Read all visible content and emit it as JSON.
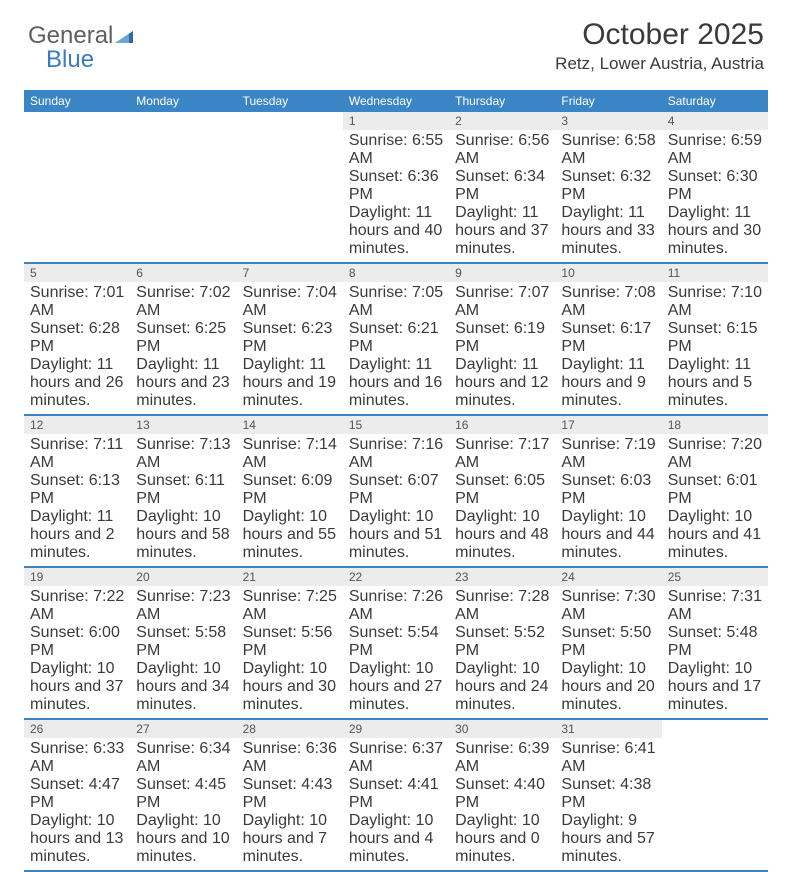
{
  "brand": {
    "name_gray": "General",
    "name_blue": "Blue",
    "color_blue": "#3a85c6",
    "color_gray": "#606060"
  },
  "header": {
    "month_title": "October 2025",
    "location": "Retz, Lower Austria, Austria"
  },
  "colors": {
    "header_bg": "#3a85c6",
    "header_text": "#ffffff",
    "daynum_bg": "#ececec",
    "rule": "#3a85c6",
    "text": "#3a3a3a",
    "page_bg": "#ffffff"
  },
  "day_names": [
    "Sunday",
    "Monday",
    "Tuesday",
    "Wednesday",
    "Thursday",
    "Friday",
    "Saturday"
  ],
  "weeks": [
    [
      {
        "n": "",
        "sr": "",
        "ss": "",
        "dl": ""
      },
      {
        "n": "",
        "sr": "",
        "ss": "",
        "dl": ""
      },
      {
        "n": "",
        "sr": "",
        "ss": "",
        "dl": ""
      },
      {
        "n": "1",
        "sr": "Sunrise: 6:55 AM",
        "ss": "Sunset: 6:36 PM",
        "dl": "Daylight: 11 hours and 40 minutes."
      },
      {
        "n": "2",
        "sr": "Sunrise: 6:56 AM",
        "ss": "Sunset: 6:34 PM",
        "dl": "Daylight: 11 hours and 37 minutes."
      },
      {
        "n": "3",
        "sr": "Sunrise: 6:58 AM",
        "ss": "Sunset: 6:32 PM",
        "dl": "Daylight: 11 hours and 33 minutes."
      },
      {
        "n": "4",
        "sr": "Sunrise: 6:59 AM",
        "ss": "Sunset: 6:30 PM",
        "dl": "Daylight: 11 hours and 30 minutes."
      }
    ],
    [
      {
        "n": "5",
        "sr": "Sunrise: 7:01 AM",
        "ss": "Sunset: 6:28 PM",
        "dl": "Daylight: 11 hours and 26 minutes."
      },
      {
        "n": "6",
        "sr": "Sunrise: 7:02 AM",
        "ss": "Sunset: 6:25 PM",
        "dl": "Daylight: 11 hours and 23 minutes."
      },
      {
        "n": "7",
        "sr": "Sunrise: 7:04 AM",
        "ss": "Sunset: 6:23 PM",
        "dl": "Daylight: 11 hours and 19 minutes."
      },
      {
        "n": "8",
        "sr": "Sunrise: 7:05 AM",
        "ss": "Sunset: 6:21 PM",
        "dl": "Daylight: 11 hours and 16 minutes."
      },
      {
        "n": "9",
        "sr": "Sunrise: 7:07 AM",
        "ss": "Sunset: 6:19 PM",
        "dl": "Daylight: 11 hours and 12 minutes."
      },
      {
        "n": "10",
        "sr": "Sunrise: 7:08 AM",
        "ss": "Sunset: 6:17 PM",
        "dl": "Daylight: 11 hours and 9 minutes."
      },
      {
        "n": "11",
        "sr": "Sunrise: 7:10 AM",
        "ss": "Sunset: 6:15 PM",
        "dl": "Daylight: 11 hours and 5 minutes."
      }
    ],
    [
      {
        "n": "12",
        "sr": "Sunrise: 7:11 AM",
        "ss": "Sunset: 6:13 PM",
        "dl": "Daylight: 11 hours and 2 minutes."
      },
      {
        "n": "13",
        "sr": "Sunrise: 7:13 AM",
        "ss": "Sunset: 6:11 PM",
        "dl": "Daylight: 10 hours and 58 minutes."
      },
      {
        "n": "14",
        "sr": "Sunrise: 7:14 AM",
        "ss": "Sunset: 6:09 PM",
        "dl": "Daylight: 10 hours and 55 minutes."
      },
      {
        "n": "15",
        "sr": "Sunrise: 7:16 AM",
        "ss": "Sunset: 6:07 PM",
        "dl": "Daylight: 10 hours and 51 minutes."
      },
      {
        "n": "16",
        "sr": "Sunrise: 7:17 AM",
        "ss": "Sunset: 6:05 PM",
        "dl": "Daylight: 10 hours and 48 minutes."
      },
      {
        "n": "17",
        "sr": "Sunrise: 7:19 AM",
        "ss": "Sunset: 6:03 PM",
        "dl": "Daylight: 10 hours and 44 minutes."
      },
      {
        "n": "18",
        "sr": "Sunrise: 7:20 AM",
        "ss": "Sunset: 6:01 PM",
        "dl": "Daylight: 10 hours and 41 minutes."
      }
    ],
    [
      {
        "n": "19",
        "sr": "Sunrise: 7:22 AM",
        "ss": "Sunset: 6:00 PM",
        "dl": "Daylight: 10 hours and 37 minutes."
      },
      {
        "n": "20",
        "sr": "Sunrise: 7:23 AM",
        "ss": "Sunset: 5:58 PM",
        "dl": "Daylight: 10 hours and 34 minutes."
      },
      {
        "n": "21",
        "sr": "Sunrise: 7:25 AM",
        "ss": "Sunset: 5:56 PM",
        "dl": "Daylight: 10 hours and 30 minutes."
      },
      {
        "n": "22",
        "sr": "Sunrise: 7:26 AM",
        "ss": "Sunset: 5:54 PM",
        "dl": "Daylight: 10 hours and 27 minutes."
      },
      {
        "n": "23",
        "sr": "Sunrise: 7:28 AM",
        "ss": "Sunset: 5:52 PM",
        "dl": "Daylight: 10 hours and 24 minutes."
      },
      {
        "n": "24",
        "sr": "Sunrise: 7:30 AM",
        "ss": "Sunset: 5:50 PM",
        "dl": "Daylight: 10 hours and 20 minutes."
      },
      {
        "n": "25",
        "sr": "Sunrise: 7:31 AM",
        "ss": "Sunset: 5:48 PM",
        "dl": "Daylight: 10 hours and 17 minutes."
      }
    ],
    [
      {
        "n": "26",
        "sr": "Sunrise: 6:33 AM",
        "ss": "Sunset: 4:47 PM",
        "dl": "Daylight: 10 hours and 13 minutes."
      },
      {
        "n": "27",
        "sr": "Sunrise: 6:34 AM",
        "ss": "Sunset: 4:45 PM",
        "dl": "Daylight: 10 hours and 10 minutes."
      },
      {
        "n": "28",
        "sr": "Sunrise: 6:36 AM",
        "ss": "Sunset: 4:43 PM",
        "dl": "Daylight: 10 hours and 7 minutes."
      },
      {
        "n": "29",
        "sr": "Sunrise: 6:37 AM",
        "ss": "Sunset: 4:41 PM",
        "dl": "Daylight: 10 hours and 4 minutes."
      },
      {
        "n": "30",
        "sr": "Sunrise: 6:39 AM",
        "ss": "Sunset: 4:40 PM",
        "dl": "Daylight: 10 hours and 0 minutes."
      },
      {
        "n": "31",
        "sr": "Sunrise: 6:41 AM",
        "ss": "Sunset: 4:38 PM",
        "dl": "Daylight: 9 hours and 57 minutes."
      },
      {
        "n": "",
        "sr": "",
        "ss": "",
        "dl": ""
      }
    ]
  ]
}
